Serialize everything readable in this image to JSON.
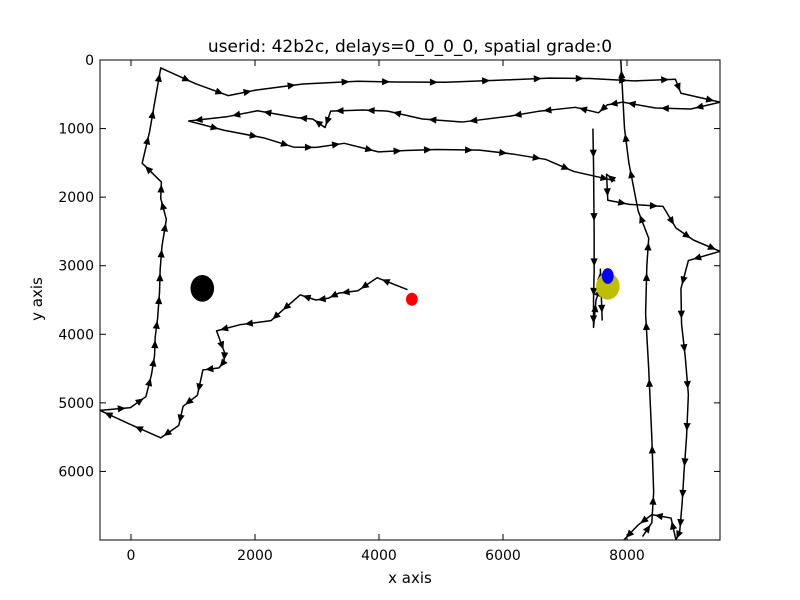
{
  "chart_data": {
    "type": "line",
    "title": "userid: 42b2c, delays=0_0_0_0, spatial grade:0",
    "xlabel": "x axis",
    "ylabel": "y axis",
    "xlim": [
      -500,
      9500
    ],
    "ylim": [
      7000,
      0
    ],
    "y_inverted": true,
    "grid": false,
    "x_ticks": [
      0,
      2000,
      4000,
      6000,
      8000
    ],
    "y_ticks": [
      0,
      1000,
      2000,
      3000,
      4000,
      5000,
      6000
    ],
    "series": [
      {
        "marker": "arrow",
        "color": "#000000",
        "points": [
          [
            4460,
            3350
          ],
          [
            3970,
            3175
          ],
          [
            3660,
            3365
          ],
          [
            3350,
            3400
          ],
          [
            3180,
            3475
          ],
          [
            2980,
            3500
          ],
          [
            2730,
            3425
          ],
          [
            2400,
            3685
          ],
          [
            2260,
            3800
          ],
          [
            1760,
            3860
          ],
          [
            1380,
            3950
          ],
          [
            1510,
            4270
          ],
          [
            1500,
            4400
          ],
          [
            1420,
            4490
          ],
          [
            1160,
            4520
          ],
          [
            1070,
            4890
          ],
          [
            840,
            5050
          ],
          [
            770,
            5330
          ],
          [
            480,
            5510
          ],
          [
            -10,
            5315
          ],
          [
            -500,
            5110
          ],
          [
            -10,
            5070
          ],
          [
            240,
            4910
          ],
          [
            330,
            4590
          ],
          [
            380,
            4310
          ],
          [
            390,
            4045
          ],
          [
            430,
            3760
          ],
          [
            460,
            3385
          ],
          [
            470,
            3060
          ],
          [
            500,
            2710
          ],
          [
            570,
            2325
          ],
          [
            480,
            2020
          ],
          [
            490,
            1780
          ],
          [
            180,
            1505
          ],
          [
            300,
            1045
          ],
          [
            370,
            680
          ],
          [
            480,
            115
          ],
          [
            1040,
            345
          ],
          [
            1570,
            520
          ],
          [
            2010,
            440
          ],
          [
            2770,
            350
          ],
          [
            3660,
            310
          ],
          [
            4270,
            320
          ],
          [
            5070,
            325
          ],
          [
            5920,
            295
          ],
          [
            6750,
            265
          ],
          [
            7400,
            270
          ],
          [
            8110,
            305
          ],
          [
            8780,
            280
          ],
          [
            8870,
            485
          ],
          [
            9500,
            615
          ],
          [
            9030,
            715
          ],
          [
            8460,
            700
          ],
          [
            7930,
            615
          ],
          [
            7680,
            655
          ],
          [
            7540,
            770
          ],
          [
            7170,
            690
          ],
          [
            6560,
            750
          ],
          [
            6100,
            820
          ],
          [
            5340,
            905
          ],
          [
            4700,
            860
          ],
          [
            4140,
            745
          ],
          [
            3740,
            730
          ],
          [
            3220,
            745
          ],
          [
            3130,
            985
          ],
          [
            2930,
            860
          ],
          [
            2670,
            840
          ],
          [
            2040,
            740
          ],
          [
            1560,
            825
          ],
          [
            930,
            890
          ],
          [
            1500,
            1025
          ],
          [
            2140,
            1135
          ],
          [
            2620,
            1270
          ],
          [
            2990,
            1275
          ],
          [
            3440,
            1215
          ],
          [
            3990,
            1340
          ],
          [
            4430,
            1320
          ],
          [
            4930,
            1305
          ],
          [
            5620,
            1315
          ],
          [
            6150,
            1370
          ],
          [
            6690,
            1450
          ],
          [
            7140,
            1625
          ],
          [
            7800,
            1760
          ],
          [
            7670,
            1665
          ],
          [
            7690,
            2045
          ],
          [
            8040,
            2105
          ],
          [
            8580,
            2135
          ],
          [
            8790,
            2450
          ],
          [
            9070,
            2625
          ],
          [
            9500,
            2790
          ],
          [
            8990,
            2925
          ],
          [
            8870,
            3335
          ],
          [
            8880,
            3850
          ],
          [
            8940,
            4335
          ],
          [
            8990,
            4880
          ],
          [
            8960,
            5505
          ],
          [
            8920,
            6000
          ],
          [
            8890,
            6455
          ],
          [
            8850,
            6875
          ],
          [
            8790,
            7000
          ],
          [
            8710,
            6680
          ],
          [
            8400,
            6630
          ],
          [
            8180,
            6780
          ],
          [
            7950,
            7000
          ]
        ]
      },
      {
        "marker": "arrow",
        "color": "#000000",
        "points": [
          [
            8250,
            6950
          ],
          [
            8400,
            6750
          ],
          [
            8430,
            6300
          ],
          [
            8400,
            5500
          ],
          [
            8350,
            4500
          ],
          [
            8300,
            3700
          ],
          [
            8320,
            3000
          ],
          [
            8350,
            2600
          ],
          [
            8180,
            2200
          ],
          [
            8030,
            1500
          ],
          [
            7960,
            1000
          ],
          [
            7900,
            0
          ]
        ]
      },
      {
        "marker": "arrow",
        "color": "#000000",
        "points": [
          [
            7450,
            1000
          ],
          [
            7460,
            1500
          ],
          [
            7470,
            2500
          ],
          [
            7470,
            3100
          ],
          [
            7460,
            3500
          ],
          [
            7460,
            3900
          ],
          [
            7500,
            3500
          ],
          [
            7580,
            3300
          ],
          [
            7570,
            3050
          ],
          [
            7600,
            3800
          ]
        ]
      }
    ],
    "markers": [
      {
        "label": "black-dot",
        "x": 1150,
        "y": 3330,
        "rx": 190,
        "ry": 195,
        "color": "#000000"
      },
      {
        "label": "red-dot",
        "x": 4530,
        "y": 3490,
        "rx": 95,
        "ry": 95,
        "color": "#ff0000"
      },
      {
        "label": "olive-dot",
        "x": 7690,
        "y": 3300,
        "rx": 190,
        "ry": 195,
        "color": "#bfbf00"
      },
      {
        "label": "blue-dot",
        "x": 7690,
        "y": 3150,
        "rx": 95,
        "ry": 115,
        "color": "#0000ff"
      }
    ]
  }
}
